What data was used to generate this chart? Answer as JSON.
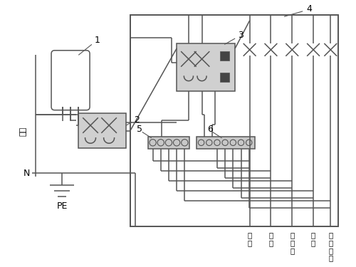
{
  "bg_color": "#ffffff",
  "lc": "#555555",
  "tc": "#000000",
  "lw": 1.1,
  "labels": {
    "fire": "火线",
    "N": "N",
    "PE": "PE",
    "n1": "1",
    "n2": "2",
    "n3": "3",
    "n4": "4",
    "n5": "5",
    "n6": "6",
    "bot": [
      "照\n明",
      "厨\n房",
      "卫\n生\n间",
      "空\n调",
      "一\n般\n插\n座"
    ]
  },
  "breaker_fill": "#d0d0d0",
  "strip_fill": "#c8c8c8"
}
